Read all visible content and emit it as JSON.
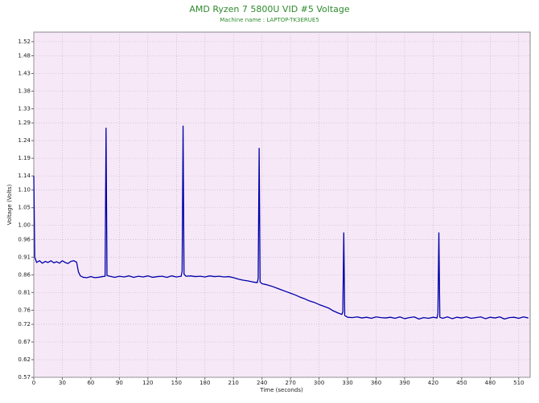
{
  "chart_data": {
    "type": "line",
    "title": "AMD Ryzen 7 5800U VID #5 Voltage",
    "subtitle": "Machine name : LAPTOP-TK3ERUE5",
    "xlabel": "Time (seconds)",
    "ylabel": "Voltage (Volts)",
    "grid": true,
    "background": "#f6e8f7",
    "xlim": [
      0,
      522
    ],
    "ylim": [
      0.57,
      1.547
    ],
    "xticks": [
      0,
      30,
      60,
      90,
      120,
      150,
      180,
      210,
      240,
      270,
      300,
      330,
      360,
      390,
      420,
      450,
      480,
      510
    ],
    "yticks": [
      0.57,
      0.62,
      0.67,
      0.72,
      0.76,
      0.81,
      0.86,
      0.91,
      0.96,
      {
        "value": 1,
        "label": "1.00"
      },
      1.05,
      {
        "value": 1.1,
        "label": "1.10"
      },
      1.14,
      1.19,
      1.24,
      1.29,
      1.33,
      1.38,
      1.43,
      1.48,
      1.52
    ],
    "x": [
      0,
      1,
      3,
      6,
      9,
      12,
      15,
      18,
      21,
      24,
      27,
      30,
      33,
      36,
      39,
      42,
      45,
      47,
      49,
      52,
      56,
      60,
      64,
      68,
      72,
      75,
      76,
      77,
      80,
      85,
      90,
      95,
      100,
      105,
      110,
      115,
      120,
      125,
      130,
      135,
      140,
      145,
      150,
      155,
      156,
      157,
      158,
      160,
      165,
      170,
      175,
      180,
      185,
      190,
      195,
      200,
      205,
      210,
      215,
      220,
      225,
      230,
      235,
      236,
      237,
      238,
      240,
      245,
      250,
      255,
      260,
      265,
      270,
      275,
      280,
      285,
      290,
      295,
      300,
      305,
      310,
      315,
      320,
      324,
      325,
      326,
      327,
      330,
      335,
      340,
      345,
      350,
      355,
      360,
      365,
      370,
      375,
      380,
      385,
      390,
      395,
      400,
      405,
      410,
      415,
      420,
      424,
      425,
      426,
      427,
      430,
      435,
      440,
      445,
      450,
      455,
      460,
      465,
      470,
      475,
      480,
      485,
      490,
      495,
      500,
      505,
      510,
      515,
      520
    ],
    "series": [
      {
        "color": "#0000a8",
        "values": [
          1.14,
          0.91,
          0.895,
          0.9,
          0.893,
          0.898,
          0.895,
          0.9,
          0.894,
          0.897,
          0.893,
          0.9,
          0.895,
          0.892,
          0.898,
          0.9,
          0.896,
          0.868,
          0.857,
          0.853,
          0.852,
          0.855,
          0.852,
          0.853,
          0.855,
          0.856,
          1.275,
          0.858,
          0.856,
          0.853,
          0.856,
          0.854,
          0.857,
          0.853,
          0.856,
          0.854,
          0.857,
          0.853,
          0.855,
          0.856,
          0.853,
          0.857,
          0.854,
          0.856,
          0.87,
          1.281,
          0.862,
          0.856,
          0.857,
          0.855,
          0.856,
          0.854,
          0.857,
          0.855,
          0.856,
          0.854,
          0.855,
          0.852,
          0.848,
          0.845,
          0.843,
          0.84,
          0.838,
          0.85,
          1.218,
          0.84,
          0.835,
          0.832,
          0.828,
          0.823,
          0.818,
          0.813,
          0.808,
          0.803,
          0.797,
          0.792,
          0.786,
          0.782,
          0.776,
          0.771,
          0.766,
          0.758,
          0.752,
          0.748,
          0.755,
          0.979,
          0.745,
          0.74,
          0.739,
          0.741,
          0.738,
          0.74,
          0.737,
          0.741,
          0.739,
          0.738,
          0.74,
          0.737,
          0.741,
          0.736,
          0.739,
          0.741,
          0.735,
          0.739,
          0.737,
          0.74,
          0.738,
          0.75,
          0.979,
          0.74,
          0.737,
          0.741,
          0.736,
          0.74,
          0.738,
          0.741,
          0.737,
          0.739,
          0.741,
          0.736,
          0.74,
          0.738,
          0.741,
          0.735,
          0.739,
          0.74,
          0.737,
          0.741,
          0.738
        ]
      }
    ]
  }
}
